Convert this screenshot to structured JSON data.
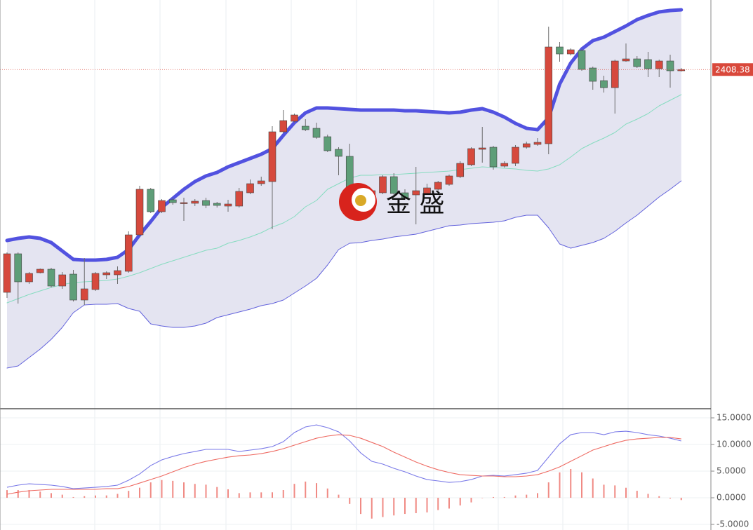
{
  "chart_data": [
    {
      "type": "candlestick",
      "ylim": [
        2168,
        2458
      ],
      "up_color": "#d6493d",
      "down_color": "#5e9e78",
      "wick_color": "#6d6d6d",
      "open": [
        2249.5,
        2277,
        2257,
        2263.5,
        2266,
        2254,
        2262.5,
        2244,
        2251.5,
        2262,
        2262,
        2264.5,
        2290.5,
        2323,
        2307,
        2315.5,
        2313,
        2313,
        2315,
        2313,
        2311,
        2311,
        2320.5,
        2327,
        2328.5,
        2364,
        2371.5,
        2368,
        2366.5,
        2360.5,
        2351.5,
        2346.5,
        2309,
        2315.5,
        2320.5,
        2332,
        2320.5,
        2319,
        2320,
        2323,
        2326.5,
        2332,
        2340.5,
        2351.5,
        2353,
        2339.5,
        2341.5,
        2353,
        2355,
        2355.5,
        2424.5,
        2419.5,
        2422,
        2409.5,
        2400.5,
        2395.5,
        2414.5,
        2416,
        2415.5,
        2409,
        2414.5,
        2407.5
      ],
      "high": [
        2278,
        2278,
        2264,
        2266.5,
        2267,
        2264,
        2265.5,
        2274,
        2264,
        2264.5,
        2268,
        2293,
        2325.5,
        2324,
        2316,
        2317,
        2317,
        2316,
        2317,
        2314,
        2315.5,
        2324,
        2330,
        2332,
        2368,
        2379.5,
        2377,
        2373,
        2370.5,
        2362,
        2353,
        2355.5,
        2317,
        2323,
        2333,
        2334.5,
        2323,
        2339,
        2327,
        2329,
        2333.5,
        2343,
        2353,
        2367.5,
        2354,
        2343,
        2354.5,
        2357,
        2359.5,
        2439,
        2428,
        2423.5,
        2423,
        2410.5,
        2404,
        2415.5,
        2427,
        2418,
        2421,
        2415.5,
        2419,
        2409.5
      ],
      "low": [
        2245.5,
        2241.5,
        2255.5,
        2263,
        2253,
        2252,
        2243,
        2240.5,
        2250.5,
        2259,
        2255.5,
        2263.5,
        2289.5,
        2306,
        2306,
        2312,
        2300.5,
        2311,
        2309.5,
        2310,
        2307,
        2310,
        2319.5,
        2325.5,
        2294.5,
        2363,
        2370.5,
        2364.5,
        2359,
        2349.5,
        2333,
        2313,
        2308,
        2314.5,
        2319.5,
        2318,
        2315.5,
        2298,
        2319,
        2322,
        2325.5,
        2331,
        2339.5,
        2342,
        2337,
        2338.5,
        2339.5,
        2352,
        2354,
        2348,
        2414,
        2418.5,
        2407.5,
        2394,
        2392,
        2377,
        2414,
        2409.5,
        2403,
        2403,
        2395.5,
        2407
      ],
      "close": [
        2277,
        2257,
        2263,
        2266,
        2254,
        2262,
        2244,
        2252,
        2263,
        2263.5,
        2265,
        2290.5,
        2323,
        2307,
        2315,
        2313.5,
        2313.5,
        2314.5,
        2311.5,
        2311.5,
        2312.5,
        2321.5,
        2327,
        2329,
        2364,
        2372,
        2376,
        2365.5,
        2360,
        2350.5,
        2346.5,
        2317,
        2315.5,
        2322,
        2332,
        2320,
        2317,
        2322,
        2324,
        2328,
        2332.5,
        2341.5,
        2352,
        2352.5,
        2339,
        2341.5,
        2353,
        2355.5,
        2356.5,
        2424.5,
        2419.5,
        2422.5,
        2408.5,
        2400,
        2395.5,
        2414.5,
        2416,
        2410.5,
        2409,
        2414.5,
        2407.5,
        2408.38
      ],
      "band_fill": "#e4e4f1",
      "bands": [
        {
          "color": "#5252e0",
          "width": 5,
          "values": [
            2286.5,
            2288,
            2289,
            2288,
            2285,
            2279,
            2273,
            2272.5,
            2272.5,
            2273,
            2274.5,
            2280,
            2290.5,
            2300,
            2310,
            2316.5,
            2323,
            2328.5,
            2332.5,
            2335,
            2339,
            2342,
            2345,
            2348,
            2352,
            2361.5,
            2370.5,
            2377.5,
            2381,
            2381,
            2380.5,
            2380,
            2379.5,
            2379.5,
            2379.5,
            2379.5,
            2379,
            2379,
            2378.5,
            2378,
            2377.5,
            2378,
            2379.5,
            2380.5,
            2378,
            2374.5,
            2370,
            2366.5,
            2365.5,
            2374,
            2398,
            2413,
            2423,
            2429,
            2431.5,
            2435.5,
            2439.5,
            2444,
            2447,
            2449.5,
            2450.5,
            2451
          ]
        },
        {
          "color": "#86dcc0",
          "width": 1,
          "values": [
            2242,
            2245,
            2248,
            2250.5,
            2253,
            2255,
            2256.5,
            2257,
            2257.5,
            2258,
            2259,
            2261,
            2263.5,
            2266.5,
            2269.5,
            2272,
            2274.5,
            2277,
            2279.5,
            2281,
            2284.5,
            2286.5,
            2289,
            2292,
            2296,
            2299,
            2303.5,
            2310.5,
            2315,
            2323,
            2327,
            2331,
            2333,
            2333,
            2333.5,
            2333.5,
            2334,
            2334.5,
            2335,
            2335.5,
            2336,
            2337,
            2338,
            2339,
            2338.5,
            2338,
            2337.5,
            2336.5,
            2336,
            2337.5,
            2340.5,
            2346,
            2352,
            2356,
            2359.5,
            2363.5,
            2369.5,
            2373,
            2377,
            2382.5,
            2386.5,
            2390.5
          ]
        },
        {
          "color": "#6262dc",
          "width": 1,
          "values": [
            2195.5,
            2197,
            2203,
            2209,
            2216,
            2224.5,
            2235,
            2240.5,
            2241,
            2241,
            2241.5,
            2238,
            2236,
            2227,
            2225.5,
            2224.5,
            2224.5,
            2225.5,
            2227.5,
            2231.5,
            2233.5,
            2235.5,
            2237.5,
            2240,
            2241.5,
            2244,
            2249,
            2254,
            2259.5,
            2269,
            2280,
            2284.5,
            2285,
            2286.5,
            2287.5,
            2289,
            2290,
            2291,
            2293,
            2295,
            2297,
            2297.5,
            2298.5,
            2299,
            2299.5,
            2300.5,
            2303,
            2304.5,
            2304.5,
            2295.5,
            2284,
            2281,
            2283,
            2285,
            2288,
            2293,
            2299,
            2304.5,
            2311,
            2317.5,
            2323,
            2329
          ]
        }
      ],
      "last_price": 2408.38,
      "last_price_color": "#d9483b",
      "watermark": "金 盛"
    },
    {
      "type": "macd",
      "ylim": [
        -6.05,
        16.45
      ],
      "yticks": [
        {
          "value": 15,
          "label": "15.0000"
        },
        {
          "value": 10,
          "label": "10.0000"
        },
        {
          "value": 5,
          "label": "5.0000"
        },
        {
          "value": 0,
          "label": "0.0000"
        },
        {
          "value": -5,
          "label": "-5.0000"
        }
      ],
      "grid": true,
      "series": [
        {
          "color": "#7a7ae8",
          "values": [
            1.97,
            2.37,
            2.63,
            2.5,
            2.37,
            2.11,
            1.71,
            1.84,
            1.97,
            2.11,
            2.37,
            3.29,
            4.47,
            6.05,
            7.11,
            7.76,
            8.29,
            8.68,
            9.08,
            9.08,
            9.08,
            8.68,
            8.95,
            9.21,
            9.61,
            10.53,
            12.24,
            13.29,
            13.68,
            13.16,
            12.37,
            10.66,
            8.42,
            6.84,
            6.32,
            5.53,
            4.87,
            4.08,
            3.42,
            3.16,
            2.89,
            3.03,
            3.42,
            4.08,
            4.21,
            4.08,
            4.34,
            4.61,
            5.13,
            7.63,
            10.13,
            11.84,
            12.24,
            12.24,
            11.84,
            12.37,
            12.5,
            12.24,
            11.84,
            11.58,
            11.18,
            10.66
          ]
        },
        {
          "color": "#ee6a62",
          "values": [
            0.66,
            1.05,
            1.32,
            1.45,
            1.58,
            1.58,
            1.58,
            1.58,
            1.58,
            1.71,
            1.71,
            2.11,
            2.76,
            3.42,
            4.08,
            4.87,
            5.66,
            6.32,
            6.84,
            7.24,
            7.63,
            7.89,
            8.03,
            8.29,
            8.68,
            9.21,
            9.87,
            10.53,
            11.18,
            11.58,
            11.84,
            11.71,
            11.18,
            10.39,
            9.61,
            8.55,
            7.63,
            6.71,
            5.92,
            5.26,
            4.74,
            4.34,
            4.21,
            4.08,
            4.08,
            3.95,
            3.95,
            4.08,
            4.34,
            5,
            5.79,
            6.84,
            7.89,
            8.95,
            9.61,
            10.26,
            10.79,
            11.05,
            11.18,
            11.32,
            11.32,
            11.05
          ]
        }
      ],
      "histogram": {
        "color": "#f08a84",
        "values": [
          1.44,
          1.45,
          1.43,
          1.15,
          0.87,
          0.58,
          0.14,
          0.29,
          0.43,
          0.44,
          0.73,
          1.3,
          1.89,
          2.89,
          3.33,
          3.18,
          2.89,
          2.6,
          2.46,
          2.02,
          1.59,
          0.87,
          1.01,
          1.01,
          1.02,
          1.45,
          2.61,
          3.04,
          2.75,
          1.74,
          0.58,
          -1.16,
          -3.04,
          -3.91,
          -3.62,
          -3.32,
          -3.03,
          -2.89,
          -2.75,
          -2.31,
          -2.03,
          -1.44,
          -0.87,
          0,
          0.14,
          0.14,
          0.43,
          0.58,
          0.87,
          2.89,
          4.77,
          5.4,
          4.78,
          3.62,
          2.45,
          2.32,
          1.88,
          1.31,
          0.73,
          0.29,
          -0.15,
          -0.43
        ]
      }
    }
  ]
}
